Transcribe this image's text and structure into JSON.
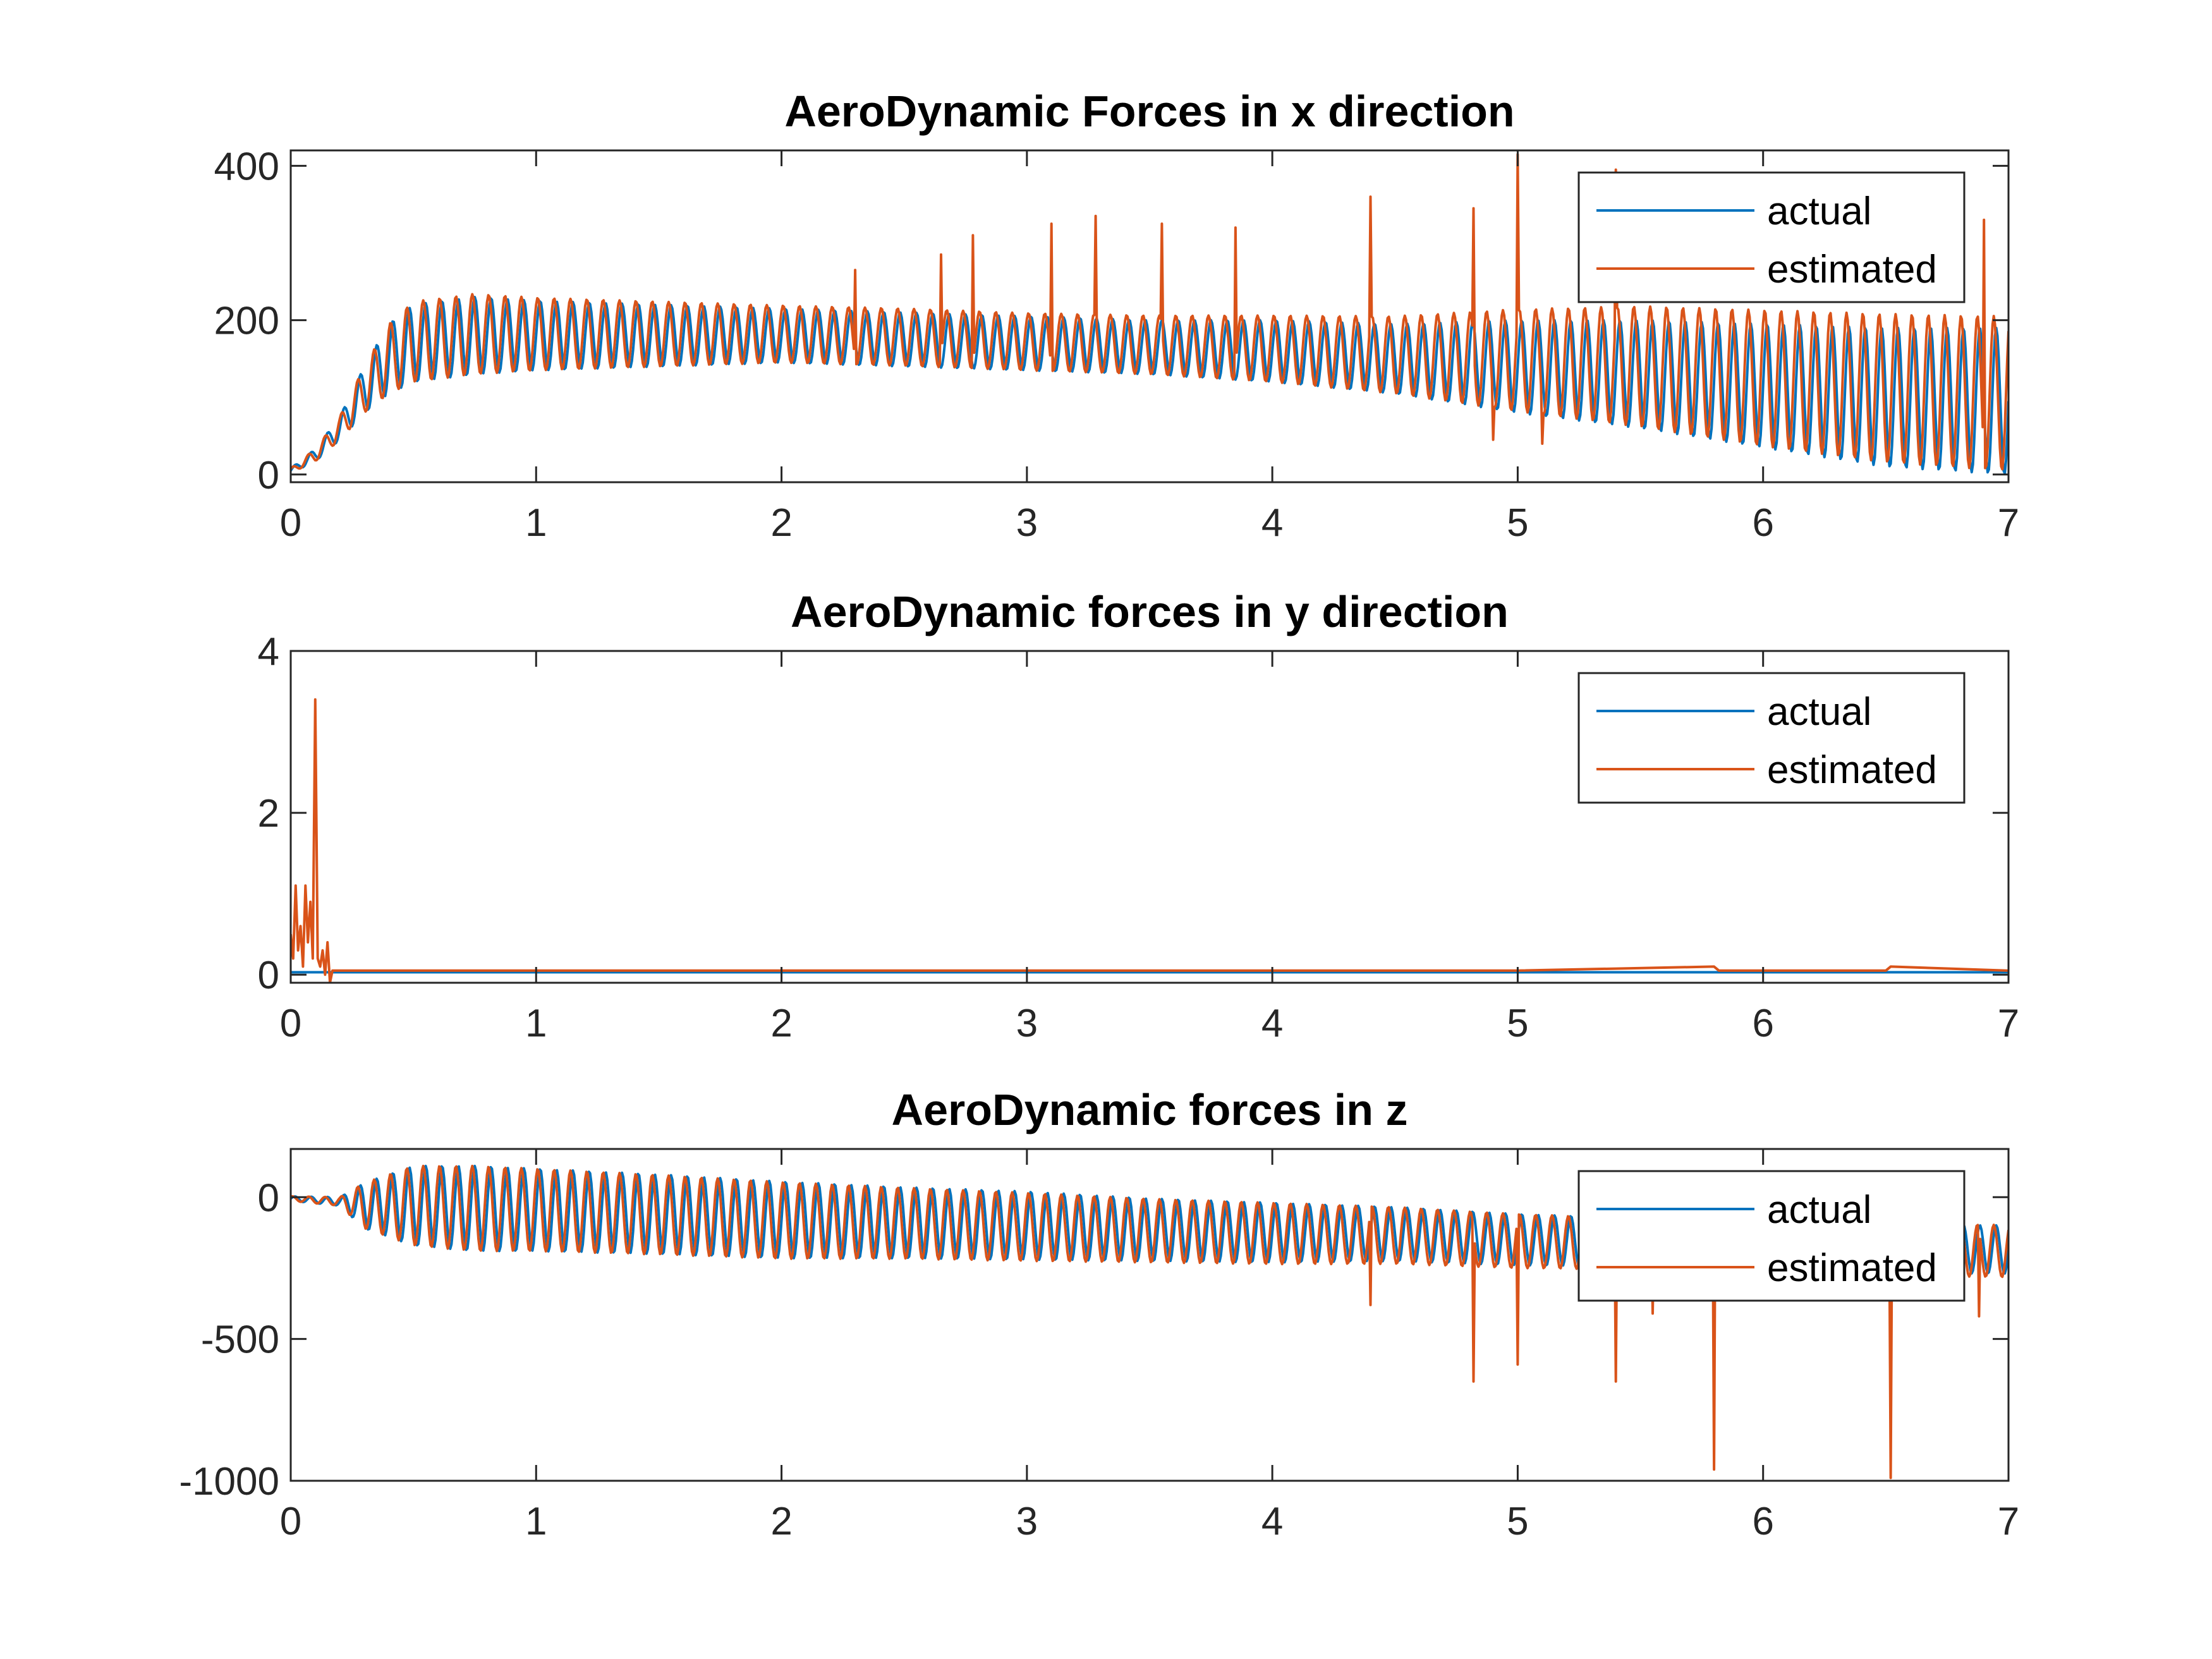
{
  "figure": {
    "colors": {
      "actual": "#0072BD",
      "estimated": "#D95319",
      "axes": "#262626",
      "background": "#FFFFFF"
    }
  },
  "chart_data": [
    {
      "type": "line",
      "title": "AeroDynamic Forces in  x direction",
      "xlabel": "",
      "ylabel": "",
      "xlim": [
        0,
        7
      ],
      "ylim": [
        -10,
        420
      ],
      "xticks": [
        0,
        1,
        2,
        3,
        4,
        5,
        6,
        7
      ],
      "xtick_labels": [
        "0",
        "1",
        "2",
        "3",
        "4",
        "5",
        "6",
        "7"
      ],
      "yticks": [
        0,
        200,
        400
      ],
      "ytick_labels": [
        "0",
        "200",
        "400"
      ],
      "grid": false,
      "legend": {
        "location": "top-right",
        "entries": [
          "actual",
          "estimated"
        ]
      },
      "series": [
        {
          "name": "actual",
          "color": "#0072BD",
          "x": [
            0,
            0.1,
            0.2,
            0.3,
            0.4,
            0.5,
            0.75,
            1.0,
            1.5,
            2.0,
            2.5,
            3.0,
            3.5,
            4.0,
            4.5,
            5.0,
            5.5,
            6.0,
            6.5,
            7.0
          ],
          "mean": [
            5,
            25,
            60,
            110,
            150,
            170,
            180,
            180,
            180,
            180,
            175,
            170,
            165,
            160,
            150,
            140,
            130,
            115,
            100,
            95
          ],
          "amplitude": [
            3,
            8,
            15,
            30,
            45,
            50,
            50,
            45,
            40,
            35,
            35,
            35,
            35,
            40,
            45,
            60,
            70,
            80,
            90,
            95
          ],
          "cycles_per_unit": 15,
          "phase": 0
        },
        {
          "name": "estimated",
          "color": "#D95319",
          "x": [
            0,
            0.1,
            0.2,
            0.3,
            0.4,
            0.5,
            0.75,
            1.0,
            1.5,
            2.0,
            2.5,
            3.0,
            3.5,
            4.0,
            4.5,
            5.0,
            5.5,
            6.0,
            6.5,
            7.0
          ],
          "mean": [
            5,
            25,
            60,
            110,
            150,
            172,
            182,
            182,
            182,
            182,
            178,
            172,
            168,
            163,
            155,
            148,
            140,
            125,
            112,
            105
          ],
          "amplitude": [
            3,
            8,
            15,
            30,
            45,
            52,
            52,
            47,
            42,
            37,
            37,
            37,
            38,
            43,
            50,
            66,
            78,
            88,
            96,
            100
          ],
          "cycles_per_unit": 15,
          "phase": 0.15,
          "spikes": [
            {
              "x": 2.3,
              "y": 265
            },
            {
              "x": 2.65,
              "y": 285
            },
            {
              "x": 2.78,
              "y": 310
            },
            {
              "x": 3.1,
              "y": 325
            },
            {
              "x": 3.28,
              "y": 335
            },
            {
              "x": 3.55,
              "y": 325
            },
            {
              "x": 3.85,
              "y": 320
            },
            {
              "x": 4.4,
              "y": 360
            },
            {
              "x": 4.82,
              "y": 345
            },
            {
              "x": 5.0,
              "y": 415
            },
            {
              "x": 5.4,
              "y": 395
            },
            {
              "x": 6.9,
              "y": 330
            },
            {
              "x": 5.1,
              "y": 40
            },
            {
              "x": 4.9,
              "y": 45
            }
          ]
        }
      ]
    },
    {
      "type": "line",
      "title": "AeroDynamic forces in y direction",
      "xlabel": "",
      "ylabel": "",
      "xlim": [
        0,
        7
      ],
      "ylim": [
        -0.1,
        4
      ],
      "xticks": [
        0,
        1,
        2,
        3,
        4,
        5,
        6,
        7
      ],
      "xtick_labels": [
        "0",
        "1",
        "2",
        "3",
        "4",
        "5",
        "6",
        "7"
      ],
      "yticks": [
        0,
        2,
        4
      ],
      "ytick_labels": [
        "0",
        "2",
        "4"
      ],
      "grid": false,
      "legend": {
        "location": "top-right",
        "entries": [
          "actual",
          "estimated"
        ]
      },
      "series": [
        {
          "name": "actual",
          "color": "#0072BD",
          "x": [
            0,
            0.1,
            0.18,
            7.0
          ],
          "y": [
            0.03,
            0.03,
            0.03,
            0.03
          ]
        },
        {
          "name": "estimated",
          "color": "#D95319",
          "x": [
            0,
            0.01,
            0.02,
            0.03,
            0.04,
            0.05,
            0.06,
            0.07,
            0.08,
            0.09,
            0.1,
            0.11,
            0.12,
            0.13,
            0.14,
            0.15,
            0.16,
            0.17,
            0.18,
            0.19,
            0.25,
            1.0,
            2.0,
            3.0,
            4.0,
            5.0,
            5.8,
            5.82,
            6.0,
            6.5,
            6.52,
            7.0
          ],
          "y": [
            0.5,
            0.2,
            1.1,
            0.3,
            0.6,
            0.1,
            1.1,
            0.4,
            0.9,
            0.2,
            3.4,
            0.2,
            0.1,
            0.3,
            0.0,
            0.4,
            -0.1,
            0.05,
            0.05,
            0.05,
            0.05,
            0.05,
            0.05,
            0.05,
            0.05,
            0.05,
            0.1,
            0.05,
            0.05,
            0.05,
            0.1,
            0.05
          ]
        }
      ]
    },
    {
      "type": "line",
      "title": "AeroDynamic forces in  z",
      "xlabel": "",
      "ylabel": "",
      "xlim": [
        0,
        7
      ],
      "ylim": [
        -1000,
        170
      ],
      "xticks": [
        0,
        1,
        2,
        3,
        4,
        5,
        6,
        7
      ],
      "xtick_labels": [
        "0",
        "1",
        "2",
        "3",
        "4",
        "5",
        "6",
        "7"
      ],
      "yticks": [
        -1000,
        -500,
        0
      ],
      "ytick_labels": [
        "-1000",
        "-500",
        "0"
      ],
      "grid": false,
      "legend": {
        "location": "top-right",
        "entries": [
          "actual",
          "estimated"
        ]
      },
      "series": [
        {
          "name": "actual",
          "color": "#0072BD",
          "x": [
            0,
            0.2,
            0.3,
            0.5,
            0.75,
            1.0,
            1.5,
            2.0,
            2.5,
            3.0,
            3.5,
            4.0,
            4.5,
            5.0,
            5.5,
            6.0,
            6.5,
            7.0
          ],
          "mean": [
            -5,
            -15,
            -30,
            -30,
            -40,
            -45,
            -60,
            -80,
            -90,
            -100,
            -115,
            -125,
            -130,
            -150,
            -160,
            -170,
            -180,
            -185
          ],
          "amplitude": [
            8,
            15,
            80,
            140,
            150,
            145,
            140,
            135,
            125,
            120,
            110,
            105,
            95,
            90,
            85,
            85,
            85,
            85
          ],
          "cycles_per_unit": 15,
          "phase": 0
        },
        {
          "name": "estimated",
          "color": "#D95319",
          "x": [
            0,
            0.2,
            0.3,
            0.5,
            0.75,
            1.0,
            1.5,
            2.0,
            2.5,
            3.0,
            3.5,
            4.0,
            4.5,
            5.0,
            5.5,
            6.0,
            6.5,
            7.0
          ],
          "mean": [
            -5,
            -15,
            -30,
            -30,
            -40,
            -45,
            -62,
            -82,
            -92,
            -105,
            -118,
            -128,
            -135,
            -155,
            -165,
            -175,
            -185,
            -190
          ],
          "amplitude": [
            8,
            15,
            80,
            140,
            150,
            145,
            140,
            135,
            125,
            120,
            112,
            108,
            100,
            95,
            90,
            90,
            90,
            92
          ],
          "cycles_per_unit": 15,
          "phase": 0.15,
          "spikes": [
            {
              "x": 4.4,
              "y": -380
            },
            {
              "x": 4.82,
              "y": -650
            },
            {
              "x": 5.0,
              "y": -590
            },
            {
              "x": 5.4,
              "y": -650
            },
            {
              "x": 5.8,
              "y": -960
            },
            {
              "x": 6.52,
              "y": -990
            },
            {
              "x": 6.88,
              "y": -420
            },
            {
              "x": 5.55,
              "y": -410
            }
          ]
        }
      ]
    }
  ]
}
